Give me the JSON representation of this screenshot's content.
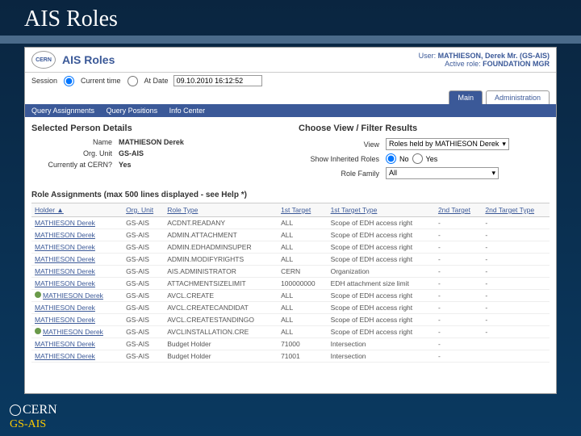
{
  "slide": {
    "title": "AIS Roles"
  },
  "header": {
    "logo_text": "CERN",
    "app_title": "AIS Roles",
    "user_label": "User:",
    "user_name": "MATHIESON, Derek Mr. (GS-AIS)",
    "active_role_label": "Active role:",
    "active_role": "FOUNDATION MGR"
  },
  "session": {
    "label": "Session",
    "opt_current": "Current time",
    "opt_date": "At Date",
    "date_value": "09.10.2010 16:12:52"
  },
  "tabs": {
    "main": "Main",
    "admin": "Administration"
  },
  "query_bar": {
    "assignments": "Query Assignments",
    "positions": "Query Positions",
    "info": "Info Center"
  },
  "person_section": {
    "title": "Selected Person Details",
    "name_label": "Name",
    "name_value": "MATHIESON Derek",
    "org_label": "Org. Unit",
    "org_value": "GS-AIS",
    "cern_label": "Currently at CERN?",
    "cern_value": "Yes"
  },
  "filter_section": {
    "title": "Choose View / Filter Results",
    "view_label": "View",
    "view_value": "Roles held by MATHIESON Derek",
    "inherited_label": "Show Inherited Roles",
    "no": "No",
    "yes": "Yes",
    "family_label": "Role Family",
    "family_value": "All"
  },
  "assignments": {
    "header": "Role Assignments (max 500 lines displayed - see Help *)",
    "columns": [
      "Holder",
      "Org. Unit",
      "Role Type",
      "1st Target",
      "1st Target Type",
      "2nd Target",
      "2nd Target Type"
    ],
    "rows": [
      {
        "holder": "MATHIESON Derek",
        "org": "GS-AIS",
        "role": "ACDNT.READANY",
        "t1": "ALL",
        "t1t": "Scope of EDH access right",
        "t2": "-",
        "t2t": "-"
      },
      {
        "holder": "MATHIESON Derek",
        "org": "GS-AIS",
        "role": "ADMIN.ATTACHMENT",
        "t1": "ALL",
        "t1t": "Scope of EDH access right",
        "t2": "-",
        "t2t": "-"
      },
      {
        "holder": "MATHIESON Derek",
        "org": "GS-AIS",
        "role": "ADMIN.EDHADMINSUPER",
        "t1": "ALL",
        "t1t": "Scope of EDH access right",
        "t2": "-",
        "t2t": "-"
      },
      {
        "holder": "MATHIESON Derek",
        "org": "GS-AIS",
        "role": "ADMIN.MODIFYRIGHTS",
        "t1": "ALL",
        "t1t": "Scope of EDH access right",
        "t2": "-",
        "t2t": "-"
      },
      {
        "holder": "MATHIESON Derek",
        "org": "GS-AIS",
        "role": "AIS.ADMINISTRATOR",
        "t1": "CERN",
        "t1t": "Organization",
        "t2": "-",
        "t2t": "-"
      },
      {
        "holder": "MATHIESON Derek",
        "org": "GS-AIS",
        "role": "ATTACHMENTSIZELIMIT",
        "t1": "100000000",
        "t1t": "EDH attachment size limit",
        "t2": "-",
        "t2t": "-"
      },
      {
        "holder": "MATHIESON Derek",
        "org": "GS-AIS",
        "role": "AVCL.CREATE",
        "t1": "ALL",
        "t1t": "Scope of EDH access right",
        "t2": "-",
        "t2t": "-",
        "icon": true
      },
      {
        "holder": "MATHIESON Derek",
        "org": "GS-AIS",
        "role": "AVCL.CREATECANDIDAT",
        "t1": "ALL",
        "t1t": "Scope of EDH access right",
        "t2": "-",
        "t2t": "-"
      },
      {
        "holder": "MATHIESON Derek",
        "org": "GS-AIS",
        "role": "AVCL.CREATESTANDINGO",
        "t1": "ALL",
        "t1t": "Scope of EDH access right",
        "t2": "-",
        "t2t": "-"
      },
      {
        "holder": "MATHIESON Derek",
        "org": "GS-AIS",
        "role": "AVCLINSTALLATION.CRE",
        "t1": "ALL",
        "t1t": "Scope of EDH access right",
        "t2": "-",
        "t2t": "-",
        "icon": true
      },
      {
        "holder": "MATHIESON Derek",
        "org": "GS-AIS",
        "role": "Budget Holder",
        "t1": "71000",
        "t1t": "Intersection",
        "t2": "-",
        "t2t": ""
      },
      {
        "holder": "MATHIESON Derek",
        "org": "GS-AIS",
        "role": "Budget Holder",
        "t1": "71001",
        "t1t": "Intersection",
        "t2": "-",
        "t2t": ""
      }
    ]
  },
  "footer": {
    "org": "CERN",
    "dept": "GS-AIS"
  }
}
